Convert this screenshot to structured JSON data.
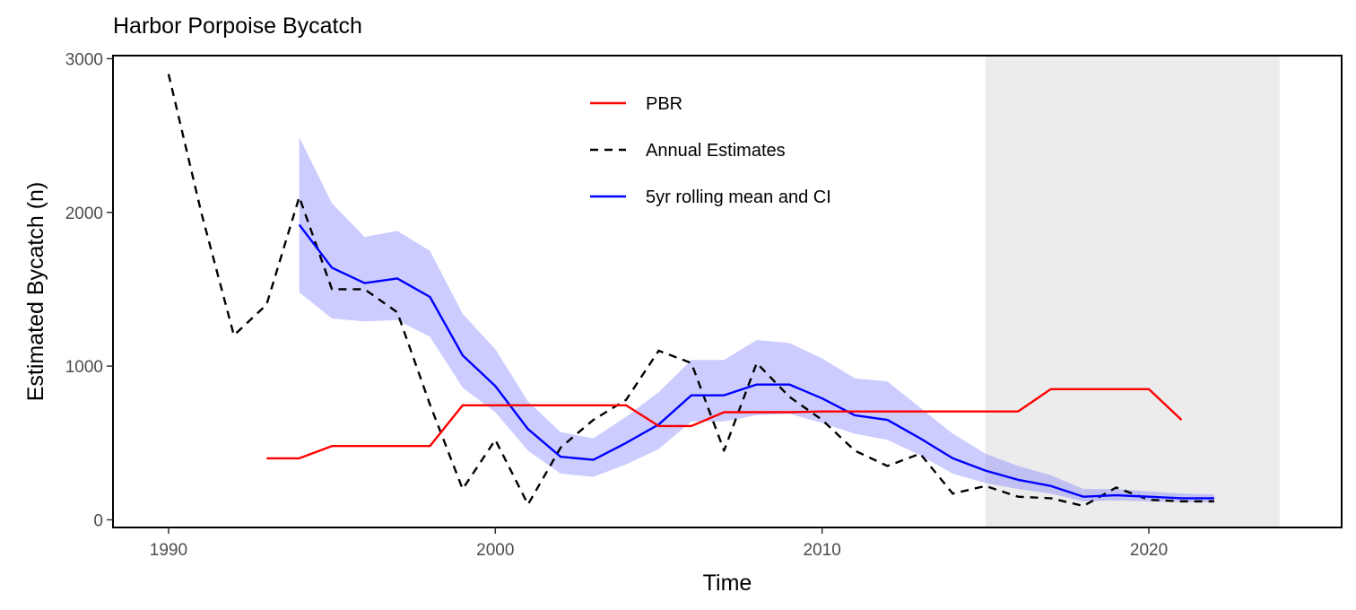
{
  "chart_data": {
    "type": "line",
    "title": "Harbor Porpoise Bycatch",
    "xlabel": "Time",
    "ylabel": "Estimated Bycatch (n)",
    "xlim": [
      1988.3,
      2025.9
    ],
    "ylim": [
      -50,
      3020
    ],
    "x_ticks": [
      1990,
      2000,
      2010,
      2020
    ],
    "y_ticks": [
      0,
      1000,
      2000,
      3000
    ],
    "grid": false,
    "legend_position": "top-center",
    "shaded_region": {
      "x_start": 2015,
      "x_end": 2024,
      "color": "#ececec"
    },
    "series": [
      {
        "name": "PBR",
        "style": "solid",
        "color": "#ff0000",
        "x": [
          1993,
          1994,
          1995,
          1996,
          1997,
          1998,
          1999,
          2000,
          2001,
          2002,
          2003,
          2004,
          2005,
          2006,
          2007,
          2008,
          2009,
          2010,
          2011,
          2012,
          2013,
          2014,
          2015,
          2016,
          2017,
          2018,
          2019,
          2020,
          2021
        ],
        "values": [
          400,
          400,
          480,
          480,
          480,
          480,
          745,
          745,
          745,
          745,
          745,
          745,
          610,
          610,
          700,
          700,
          700,
          705,
          705,
          705,
          705,
          705,
          705,
          705,
          850,
          850,
          850,
          850,
          650
        ]
      },
      {
        "name": "Annual Estimates",
        "style": "dashed",
        "color": "#000000",
        "x": [
          1990,
          1991,
          1992,
          1993,
          1994,
          1995,
          1996,
          1997,
          1998,
          1999,
          2000,
          2001,
          2002,
          2003,
          2004,
          2005,
          2006,
          2007,
          2008,
          2009,
          2010,
          2011,
          2012,
          2013,
          2014,
          2015,
          2016,
          2017,
          2018,
          2019,
          2020,
          2021,
          2022
        ],
        "values": [
          2900,
          2000,
          1200,
          1400,
          2100,
          1500,
          1500,
          1350,
          750,
          200,
          520,
          100,
          470,
          650,
          780,
          1100,
          1020,
          450,
          1020,
          800,
          650,
          450,
          350,
          430,
          170,
          220,
          150,
          140,
          90,
          210,
          130,
          120,
          120
        ]
      },
      {
        "name": "5yr rolling mean and CI",
        "style": "solid",
        "color": "#0000ff",
        "band_color": "#8080ff",
        "x": [
          1994,
          1995,
          1996,
          1997,
          1998,
          1999,
          2000,
          2001,
          2002,
          2003,
          2004,
          2005,
          2006,
          2007,
          2008,
          2009,
          2010,
          2011,
          2012,
          2013,
          2014,
          2015,
          2016,
          2017,
          2018,
          2019,
          2020,
          2021,
          2022
        ],
        "values": [
          1920,
          1640,
          1540,
          1570,
          1450,
          1070,
          870,
          590,
          410,
          390,
          500,
          620,
          810,
          810,
          880,
          880,
          790,
          680,
          650,
          530,
          400,
          320,
          260,
          220,
          150,
          160,
          150,
          140,
          140
        ],
        "lower": [
          1480,
          1310,
          1290,
          1300,
          1190,
          860,
          700,
          450,
          300,
          280,
          360,
          460,
          640,
          640,
          680,
          690,
          630,
          560,
          520,
          420,
          300,
          240,
          200,
          170,
          120,
          125,
          120,
          115,
          115
        ],
        "upper": [
          2490,
          2060,
          1840,
          1880,
          1750,
          1340,
          1110,
          770,
          570,
          530,
          670,
          830,
          1040,
          1040,
          1170,
          1150,
          1050,
          920,
          900,
          730,
          560,
          430,
          350,
          290,
          200,
          200,
          185,
          170,
          165
        ]
      }
    ]
  }
}
